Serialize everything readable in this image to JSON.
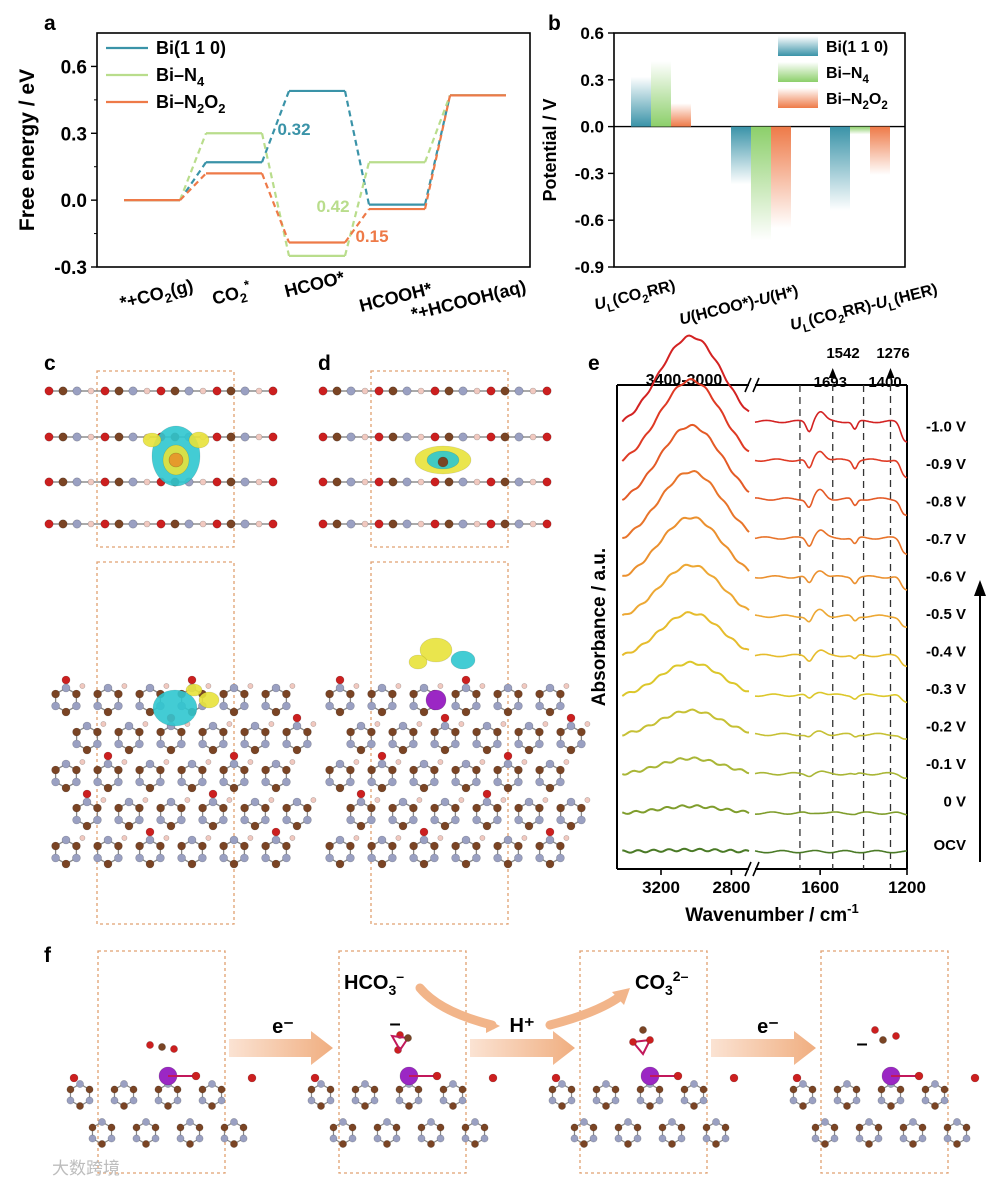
{
  "panels": {
    "a": "a",
    "b": "b",
    "c": "c",
    "d": "d",
    "e": "e",
    "f": "f"
  },
  "colors": {
    "bi110": "#3a93a8",
    "biN4": "#b9dd8c",
    "biN2O2": "#ee7a48",
    "atom_C": "#7a4424",
    "atom_N": "#9aa0c2",
    "atom_O": "#cc1f1f",
    "atom_H": "#f1c9c0",
    "atom_Bi": "#9b27c4",
    "iso_yellow": "#e8e23a",
    "iso_cyan": "#2fc7cf",
    "box": "#e0a070",
    "arrow": "#f2b58a"
  },
  "chart_data": [
    {
      "id": "a",
      "type": "line",
      "title": "",
      "xlabel": "",
      "ylabel": "Free energy / eV",
      "ylim": [
        -0.3,
        0.75
      ],
      "yticks": [
        "-0.3",
        "0.0",
        "0.3",
        "0.6"
      ],
      "categories": [
        "*+CO2(g)",
        "CO2*",
        "HCOO*",
        "HCOOH*",
        "*+HCOOH(aq)"
      ],
      "category_labels": [
        {
          "base": "*+CO",
          "sub": "2",
          "tail": "(g)"
        },
        {
          "base": "CO",
          "sub": "2",
          "sup": "*"
        },
        {
          "base": "HCOO*"
        },
        {
          "base": "HCOOH*"
        },
        {
          "base": "*+HCOOH(aq)"
        }
      ],
      "series": [
        {
          "name": "Bi(1 1 0)",
          "color": "#3a93a8",
          "values": [
            0.0,
            0.17,
            0.49,
            -0.02,
            0.47
          ]
        },
        {
          "name": "Bi–N4",
          "color": "#b9dd8c",
          "values": [
            0.0,
            0.3,
            -0.25,
            0.17,
            0.47
          ]
        },
        {
          "name": "Bi–N2O2",
          "color": "#ee7a48",
          "values": [
            0.0,
            0.12,
            -0.19,
            -0.04,
            0.47
          ]
        }
      ],
      "legend": [
        {
          "base": "Bi(1 1 0)"
        },
        {
          "base": "Bi–N",
          "sub": "4"
        },
        {
          "base": "Bi–N",
          "sub": "2",
          "mid": "O",
          "sub2": "2"
        }
      ],
      "annotations": [
        {
          "text": "0.32",
          "series": "Bi(1 1 0)",
          "color": "#3a93a8",
          "at": "HCOO*"
        },
        {
          "text": "0.42",
          "series": "Bi–N4",
          "color": "#b9dd8c",
          "at": "HCOOH*"
        },
        {
          "text": "0.15",
          "series": "Bi–N2O2",
          "color": "#ee7a48",
          "at": "HCOOH*"
        }
      ],
      "legend_position": "top-left"
    },
    {
      "id": "b",
      "type": "bar",
      "ylabel": "Potential / V",
      "ylim": [
        -0.9,
        0.6
      ],
      "yticks": [
        "-0.9",
        "-0.6",
        "-0.3",
        "0.0",
        "0.3",
        "0.6"
      ],
      "categories": [
        "UL(CO2RR)",
        "U(HCOO*)-U(H*)",
        "UL(CO2RR)-UL(HER)"
      ],
      "category_labels": [
        {
          "parts": [
            [
              "U",
              "i"
            ],
            [
              "L",
              "sub"
            ],
            [
              "(CO",
              "n"
            ],
            [
              "2",
              "sub"
            ],
            [
              "RR)",
              "n"
            ]
          ]
        },
        {
          "parts": [
            [
              "U",
              "i"
            ],
            [
              "(HCOO*)-",
              "n"
            ],
            [
              "U",
              "i"
            ],
            [
              "(H*)",
              "n"
            ]
          ]
        },
        {
          "parts": [
            [
              "U",
              "i"
            ],
            [
              "L",
              "sub"
            ],
            [
              "(CO",
              "n"
            ],
            [
              "2",
              "sub"
            ],
            [
              "RR)-",
              "n"
            ],
            [
              "U",
              "i"
            ],
            [
              "L",
              "sub"
            ],
            [
              "(HER)",
              "n"
            ]
          ]
        }
      ],
      "series": [
        {
          "name": "Bi(1 1 0)",
          "color": "#3a93a8",
          "values": [
            0.32,
            -0.37,
            -0.54
          ]
        },
        {
          "name": "Bi–N4",
          "color": "#8ccf6a",
          "values": [
            0.42,
            -0.73,
            -0.05
          ]
        },
        {
          "name": "Bi–N2O2",
          "color": "#ee7a48",
          "values": [
            0.15,
            -0.65,
            -0.31
          ]
        }
      ],
      "legend": [
        {
          "base": "Bi(1 1 0)"
        },
        {
          "base": "Bi–N",
          "sub": "4"
        },
        {
          "base": "Bi–N",
          "sub": "2",
          "mid": "O",
          "sub2": "2"
        }
      ],
      "legend_position": "top-right"
    },
    {
      "id": "e",
      "type": "line",
      "xlabel": "Wavenumber / cm",
      "xlabel_sup": "-1",
      "ylabel": "Absorbance / a.u.",
      "xticks": [
        "3200",
        "2800",
        "1600",
        "1200"
      ],
      "x_break": [
        "2700",
        "1900"
      ],
      "band_label": "3400-3000",
      "reference_lines": [
        "1693",
        "1542",
        "1400",
        "1276"
      ],
      "potentials": [
        "-1.0 V",
        "-0.9 V",
        "-0.8 V",
        "-0.7 V",
        "-0.6 V",
        "-0.5 V",
        "-0.4 V",
        "-0.3 V",
        "-0.2 V",
        "-0.1 V",
        "0 V",
        "OCV"
      ],
      "series_colors": [
        "#d32222",
        "#df3a24",
        "#e45a26",
        "#e8742a",
        "#eb902e",
        "#eda834",
        "#e6bc2c",
        "#dcc72a",
        "#c6c034",
        "#a9b636",
        "#7f9d2c",
        "#4a7a26"
      ],
      "relative_intensity": [
        1.0,
        0.94,
        0.86,
        0.78,
        0.7,
        0.6,
        0.5,
        0.38,
        0.28,
        0.18,
        0.08,
        0.02
      ]
    }
  ],
  "panel_f": {
    "labels": [
      "e⁻",
      "H⁺",
      "e⁻"
    ],
    "species": [
      {
        "base": "HCO",
        "sub": "3",
        "sup": "–"
      },
      {
        "base": "CO",
        "sub": "3",
        "sup": "2–"
      }
    ],
    "charges": [
      "–",
      "–"
    ]
  },
  "watermark": "大数跨境"
}
